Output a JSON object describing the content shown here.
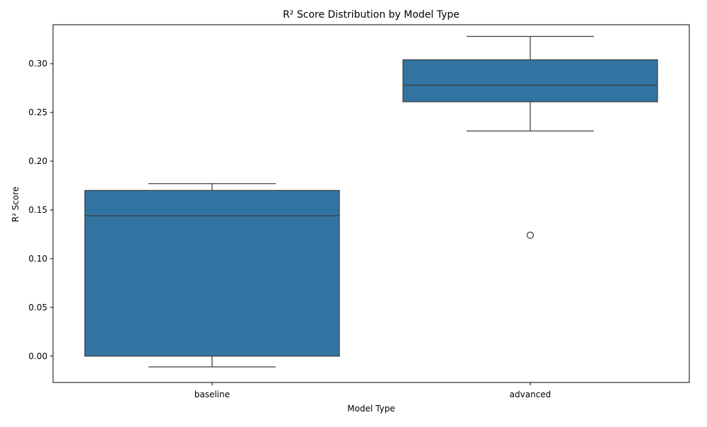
{
  "chart_data": {
    "type": "box",
    "title": "R² Score Distribution by Model Type",
    "xlabel": "Model Type",
    "ylabel": "R² Score",
    "categories": [
      "baseline",
      "advanced"
    ],
    "boxes": [
      {
        "category": "baseline",
        "whisker_low": -0.011,
        "q1": 0.0,
        "median": 0.144,
        "q3": 0.17,
        "whisker_high": 0.177,
        "outliers": []
      },
      {
        "category": "advanced",
        "whisker_low": 0.231,
        "q1": 0.261,
        "median": 0.278,
        "q3": 0.304,
        "whisker_high": 0.328,
        "outliers": [
          0.124
        ]
      }
    ],
    "ylim": [
      -0.027,
      0.34
    ],
    "yticks": [
      0.0,
      0.05,
      0.1,
      0.15,
      0.2,
      0.25,
      0.3
    ],
    "ytick_labels": [
      "0.00",
      "0.05",
      "0.10",
      "0.15",
      "0.20",
      "0.25",
      "0.30"
    ],
    "grid": false,
    "colors": {
      "box_fill": "#3274a1",
      "line": "#3f3f3f",
      "axis": "#000000"
    }
  }
}
